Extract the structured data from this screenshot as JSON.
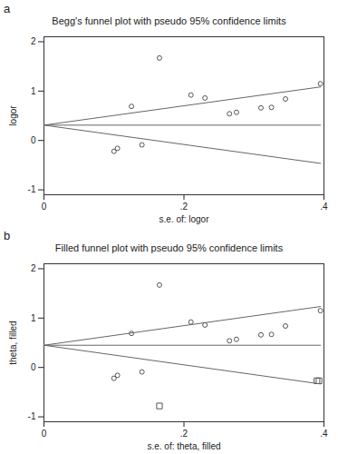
{
  "chart_data": [
    {
      "type": "scatter",
      "annotations": [
        "a"
      ],
      "title": "Begg's funnel plot with pseudo 95% confidence limits",
      "x_label": "s.e. of: logor",
      "y_label": "logor",
      "xlim": [
        0,
        0.4
      ],
      "ylim": [
        -1.1,
        2.1
      ],
      "xticks": [
        0,
        {
          "value": 0.2,
          "label": ".2"
        },
        {
          "value": 0.4,
          "label": ".4"
        }
      ],
      "yticks": [
        -1,
        0,
        1,
        2
      ],
      "series": [
        {
          "type": "scatter",
          "marker": "circle",
          "color": "#555555",
          "x": [
            0.165,
            0.21,
            0.23,
            0.125,
            0.265,
            0.275,
            0.31,
            0.325,
            0.345,
            0.395,
            0.1,
            0.105,
            0.14
          ],
          "values": [
            1.67,
            0.92,
            0.86,
            0.69,
            0.54,
            0.57,
            0.66,
            0.67,
            0.84,
            1.15,
            -0.22,
            -0.16,
            -0.09
          ]
        },
        {
          "type": "line",
          "line_style": "solid",
          "color": "#666666",
          "x": [
            0,
            0.395
          ],
          "values": [
            0.31,
            0.31
          ]
        },
        {
          "type": "line",
          "line_style": "solid",
          "color": "#666666",
          "x": [
            0,
            0.395
          ],
          "values": [
            0.31,
            1.084
          ]
        },
        {
          "type": "line",
          "line_style": "solid",
          "color": "#666666",
          "x": [
            0,
            0.395
          ],
          "values": [
            0.31,
            -0.464
          ]
        }
      ]
    },
    {
      "type": "scatter",
      "annotations": [
        "b"
      ],
      "title": "Filled funnel plot with pseudo 95% confidence limits",
      "x_label": "s.e. of: theta, filled",
      "y_label": "theta, filled",
      "xlim": [
        0,
        0.4
      ],
      "ylim": [
        -1.1,
        2.1
      ],
      "xticks": [
        0,
        {
          "value": 0.2,
          "label": ".2"
        },
        {
          "value": 0.4,
          "label": ".4"
        }
      ],
      "yticks": [
        -1,
        0,
        1,
        2
      ],
      "series": [
        {
          "type": "scatter",
          "marker": "circle",
          "color": "#555555",
          "x": [
            0.165,
            0.21,
            0.23,
            0.125,
            0.265,
            0.275,
            0.31,
            0.325,
            0.345,
            0.395,
            0.1,
            0.105,
            0.14
          ],
          "values": [
            1.67,
            0.92,
            0.86,
            0.69,
            0.54,
            0.57,
            0.66,
            0.67,
            0.84,
            1.15,
            -0.22,
            -0.16,
            -0.09
          ]
        },
        {
          "type": "scatter",
          "marker": "square",
          "color": "#555555",
          "x": [
            0.165,
            0.39,
            0.393
          ],
          "values": [
            -0.78,
            -0.27,
            -0.27
          ]
        },
        {
          "type": "line",
          "line_style": "solid",
          "color": "#666666",
          "x": [
            0,
            0.395
          ],
          "values": [
            0.45,
            0.45
          ]
        },
        {
          "type": "line",
          "line_style": "solid",
          "color": "#666666",
          "x": [
            0,
            0.395
          ],
          "values": [
            0.45,
            1.234
          ]
        },
        {
          "type": "line",
          "line_style": "solid",
          "color": "#666666",
          "x": [
            0,
            0.395
          ],
          "values": [
            0.45,
            -0.334
          ]
        }
      ]
    }
  ]
}
